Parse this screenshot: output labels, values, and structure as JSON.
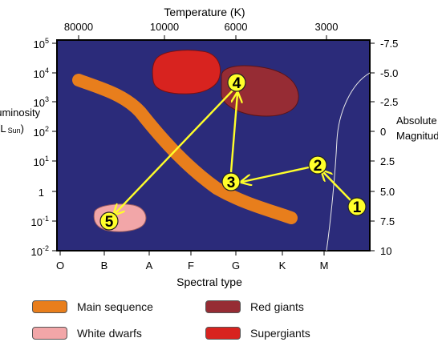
{
  "top_axis": {
    "title": "Temperature (K)",
    "ticks": [
      "80000",
      "10000",
      "6000",
      "3000"
    ]
  },
  "bottom_axis": {
    "title": "Spectral type",
    "ticks": [
      "O",
      "B",
      "A",
      "F",
      "G",
      "K",
      "M"
    ]
  },
  "left_axis": {
    "title_line1": "Luminosity",
    "title_line2_prefix": "(L",
    "title_line2_sub": "Sun",
    "title_line2_suffix": ")",
    "ticks": [
      {
        "base": "10",
        "exp": "5"
      },
      {
        "base": "10",
        "exp": "4"
      },
      {
        "base": "10",
        "exp": "3"
      },
      {
        "base": "10",
        "exp": "2"
      },
      {
        "base": "10",
        "exp": "1"
      },
      {
        "base": "1",
        "exp": ""
      },
      {
        "base": "10",
        "exp": "-1"
      },
      {
        "base": "10",
        "exp": "-2"
      }
    ]
  },
  "right_axis": {
    "title_line1": "Absolute",
    "title_line2": "Magnitude",
    "ticks": [
      "-7.5",
      "-5.0",
      "-2.5",
      "0",
      "2.5",
      "5.0",
      "7.5",
      "10"
    ]
  },
  "stage_markers": [
    "1",
    "2",
    "3",
    "4",
    "5"
  ],
  "colors": {
    "plot_background": "#2b2b7a",
    "main_sequence": "#e87e1c",
    "white_dwarfs": "#f2a6a8",
    "red_giants": "#962c34",
    "supergiants": "#d8231f",
    "track": "#ffff2a"
  },
  "legend": [
    {
      "label": "Main sequence",
      "color": "#e87e1c"
    },
    {
      "label": "White dwarfs",
      "color": "#f2a6a8"
    },
    {
      "label": "Red giants",
      "color": "#962c34"
    },
    {
      "label": "Supergiants",
      "color": "#d8231f"
    }
  ]
}
